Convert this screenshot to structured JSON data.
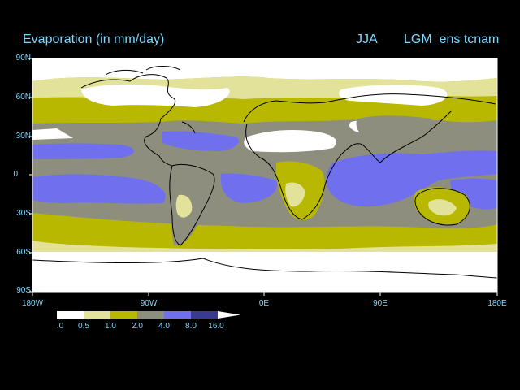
{
  "header": {
    "title": "Evaporation (in mm/day)",
    "season": "JJA",
    "run": "LGM_ens tcnam"
  },
  "axes": {
    "lat_labels": [
      "90N",
      "60N",
      "30N",
      "0",
      "30S",
      "60S",
      "90S"
    ],
    "lon_labels": [
      "180W",
      "90W",
      "0E",
      "90E",
      "180E"
    ]
  },
  "colorbar": {
    "labels": [
      ".0",
      "0.5",
      "1.0",
      "2.0",
      "4.0",
      "8.0",
      "16.0"
    ],
    "colors": [
      "#ffffff",
      "#e2e29a",
      "#b8b800",
      "#8e8e7e",
      "#7070ee",
      "#3a3a90"
    ]
  },
  "legend_levels_mm_day": [
    0,
    0.5,
    1.0,
    2.0,
    4.0,
    8.0,
    16.0
  ]
}
